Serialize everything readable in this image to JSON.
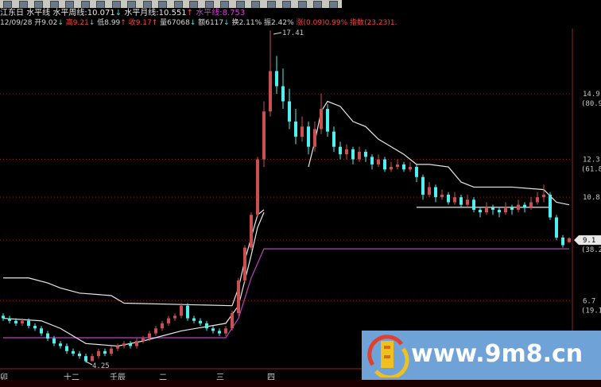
{
  "window": {
    "toolbar_icons": [
      "save-icon",
      "open-icon",
      "print-icon",
      "shield-icon",
      "pen-icon",
      "up-arrow-icon",
      "down-arrow-icon",
      "help-icon",
      "layout-icon",
      "layout-icon",
      "layout-icon",
      "layout-icon",
      "layout-icon",
      "layout-icon",
      "cursor-icon",
      "line-icon",
      "bars-icon",
      "chart-icon",
      "period-icon",
      "formula-icon",
      "square-icon",
      "circle-icon"
    ]
  },
  "header": {
    "indicator_name": "江东日",
    "line0_label": "水平线",
    "weekly_label": "水平周线:10.071",
    "weekly_arrow": "↓",
    "monthly_label": "水平月线:10.551",
    "monthly_arrow": "↑",
    "level_label": "水平线:8.753"
  },
  "quote": {
    "date": "12/09/28",
    "open": "开9.02",
    "open_arrow": "↓",
    "high": "高9.21",
    "high_arrow": "↓",
    "low": "低8.99",
    "low_arrow": "↑",
    "close": "收9.17",
    "close_arrow": "↑",
    "volume": "量67068",
    "volume_arrow": "↓",
    "amount": "额6117",
    "amount_arrow": "↓",
    "turnover": "换2.11%",
    "amplitude": "振2.42%",
    "change_label": "涨",
    "change": "(0.09)0.99%",
    "index_label": "指数",
    "index": "(23.23)1."
  },
  "axis": {
    "right_labels": [
      {
        "price": 14.9,
        "text": "14.9",
        "pct": "(80.9%)"
      },
      {
        "price": 12.3,
        "text": "12.3",
        "pct": "(61.8%)"
      },
      {
        "price": 10.8,
        "text": "10.8",
        "pct": ""
      },
      {
        "price": 9.1,
        "text": "9.1",
        "pct": "(38.2%)",
        "highlight": true
      },
      {
        "price": 6.7,
        "text": "6.7",
        "pct": "(19.1%)"
      }
    ],
    "bottom_labels": [
      "卯",
      "十二",
      "壬辰",
      "二",
      "三",
      "四"
    ]
  },
  "annotations": {
    "high": "17.41",
    "low": "4.25"
  },
  "watermark": {
    "text": "www.9m8.cn",
    "logo_colors": [
      "#e04030",
      "#f0c020"
    ]
  },
  "colors": {
    "up": "#c85050",
    "down": "#50f0f0",
    "grid": "#802020",
    "level_line": "#c040c0",
    "ma_line": "#e8e8e8",
    "background": "#000000"
  },
  "chart_data": {
    "type": "candlestick",
    "ylim": [
      3.9,
      18.2
    ],
    "ohlc": [
      [
        6.1,
        6.2,
        5.9,
        6.0
      ],
      [
        6.0,
        6.1,
        5.8,
        5.9
      ],
      [
        5.9,
        6.0,
        5.7,
        5.8
      ],
      [
        5.8,
        6.0,
        5.7,
        5.9
      ],
      [
        5.9,
        6.0,
        5.6,
        5.7
      ],
      [
        5.7,
        5.8,
        5.5,
        5.6
      ],
      [
        5.6,
        5.7,
        5.3,
        5.4
      ],
      [
        5.4,
        5.5,
        5.1,
        5.2
      ],
      [
        5.2,
        5.3,
        4.9,
        5.0
      ],
      [
        5.0,
        5.1,
        4.8,
        4.9
      ],
      [
        4.9,
        5.0,
        4.6,
        4.7
      ],
      [
        4.7,
        4.8,
        4.5,
        4.6
      ],
      [
        4.6,
        4.7,
        4.4,
        4.5
      ],
      [
        4.5,
        4.6,
        4.25,
        4.3
      ],
      [
        4.3,
        4.6,
        4.3,
        4.5
      ],
      [
        4.5,
        4.8,
        4.4,
        4.7
      ],
      [
        4.7,
        4.8,
        4.5,
        4.6
      ],
      [
        4.6,
        4.9,
        4.5,
        4.8
      ],
      [
        4.8,
        5.0,
        4.7,
        4.9
      ],
      [
        4.9,
        5.1,
        4.8,
        5.0
      ],
      [
        5.0,
        5.1,
        4.8,
        4.9
      ],
      [
        4.9,
        5.2,
        4.8,
        5.1
      ],
      [
        5.1,
        5.3,
        5.0,
        5.2
      ],
      [
        5.2,
        5.5,
        5.1,
        5.4
      ],
      [
        5.4,
        5.7,
        5.3,
        5.6
      ],
      [
        5.6,
        5.9,
        5.5,
        5.8
      ],
      [
        5.8,
        6.1,
        5.7,
        6.0
      ],
      [
        6.0,
        6.2,
        5.9,
        6.1
      ],
      [
        6.1,
        6.6,
        6.0,
        6.5
      ],
      [
        6.5,
        6.6,
        5.9,
        6.0
      ],
      [
        6.0,
        6.1,
        5.8,
        5.9
      ],
      [
        5.9,
        6.0,
        5.7,
        5.8
      ],
      [
        5.8,
        5.9,
        5.5,
        5.6
      ],
      [
        5.6,
        5.7,
        5.4,
        5.5
      ],
      [
        5.5,
        5.6,
        5.3,
        5.4
      ],
      [
        5.4,
        5.7,
        5.3,
        5.6
      ],
      [
        5.6,
        6.3,
        5.5,
        6.2
      ],
      [
        6.2,
        7.6,
        6.1,
        7.5
      ],
      [
        7.5,
        8.9,
        7.4,
        8.8
      ],
      [
        8.8,
        10.2,
        8.7,
        10.1
      ],
      [
        10.1,
        12.4,
        10.0,
        12.3
      ],
      [
        12.3,
        14.6,
        12.0,
        14.2
      ],
      [
        14.2,
        17.41,
        14.0,
        15.8
      ],
      [
        15.8,
        16.4,
        14.9,
        15.2
      ],
      [
        15.2,
        15.9,
        14.3,
        14.6
      ],
      [
        14.6,
        15.1,
        13.5,
        13.8
      ],
      [
        13.8,
        14.3,
        12.9,
        13.2
      ],
      [
        13.2,
        14.0,
        13.0,
        13.6
      ],
      [
        13.6,
        13.8,
        12.5,
        12.8
      ],
      [
        12.8,
        13.8,
        12.6,
        13.5
      ],
      [
        13.5,
        14.9,
        13.3,
        14.3
      ],
      [
        14.3,
        14.5,
        13.2,
        13.4
      ],
      [
        13.4,
        13.6,
        12.6,
        12.8
      ],
      [
        12.8,
        13.0,
        12.3,
        12.5
      ],
      [
        12.5,
        12.9,
        12.3,
        12.7
      ],
      [
        12.7,
        12.8,
        12.1,
        12.3
      ],
      [
        12.3,
        12.8,
        12.2,
        12.6
      ],
      [
        12.6,
        12.7,
        12.2,
        12.4
      ],
      [
        12.4,
        12.5,
        11.9,
        12.1
      ],
      [
        12.1,
        12.5,
        12.0,
        12.3
      ],
      [
        12.3,
        12.4,
        11.8,
        11.9
      ],
      [
        11.9,
        12.2,
        11.8,
        12.0
      ],
      [
        12.0,
        12.3,
        11.9,
        12.1
      ],
      [
        12.1,
        12.2,
        11.8,
        11.9
      ],
      [
        11.9,
        12.2,
        11.8,
        12.0
      ],
      [
        12.0,
        12.1,
        11.4,
        11.6
      ],
      [
        11.6,
        11.7,
        10.7,
        10.9
      ],
      [
        10.9,
        11.4,
        10.8,
        11.2
      ],
      [
        11.2,
        11.3,
        10.6,
        10.8
      ],
      [
        10.8,
        11.1,
        10.7,
        10.9
      ],
      [
        10.9,
        11.0,
        10.5,
        10.6
      ],
      [
        10.6,
        11.0,
        10.5,
        10.8
      ],
      [
        10.8,
        10.9,
        10.4,
        10.5
      ],
      [
        10.5,
        10.9,
        10.4,
        10.7
      ],
      [
        10.7,
        10.8,
        10.2,
        10.3
      ],
      [
        10.3,
        10.4,
        10.0,
        10.2
      ],
      [
        10.2,
        10.6,
        10.1,
        10.4
      ],
      [
        10.4,
        10.5,
        10.1,
        10.3
      ],
      [
        10.3,
        10.4,
        10.0,
        10.2
      ],
      [
        10.2,
        10.6,
        10.1,
        10.4
      ],
      [
        10.4,
        10.5,
        10.1,
        10.3
      ],
      [
        10.3,
        10.7,
        10.2,
        10.5
      ],
      [
        10.5,
        10.6,
        10.2,
        10.4
      ],
      [
        10.4,
        10.8,
        10.3,
        10.6
      ],
      [
        10.6,
        11.0,
        10.5,
        10.8
      ],
      [
        10.8,
        11.3,
        10.6,
        10.9
      ],
      [
        10.9,
        11.0,
        9.9,
        10.0
      ],
      [
        10.0,
        10.1,
        9.1,
        9.2
      ],
      [
        9.2,
        9.3,
        8.8,
        8.9
      ],
      [
        9.02,
        9.21,
        8.99,
        9.17
      ]
    ],
    "lines": [
      {
        "name": "水平线",
        "color": "#c040c0",
        "points": [
          [
            0,
            5.23
          ],
          [
            35,
            5.23
          ],
          [
            37,
            6.0
          ],
          [
            39,
            7.6
          ],
          [
            41,
            8.753
          ],
          [
            89,
            8.753
          ]
        ]
      },
      {
        "color": "#e8e8e8",
        "points": [
          [
            0,
            7.6
          ],
          [
            4,
            7.6
          ],
          [
            7,
            7.4
          ],
          [
            9,
            7.2
          ],
          [
            12,
            7.0
          ],
          [
            17,
            6.9
          ],
          [
            19,
            6.6
          ],
          [
            36,
            6.5
          ],
          [
            37,
            7.2
          ],
          [
            38,
            8.3
          ],
          [
            39,
            9.2
          ],
          [
            40,
            10.1
          ],
          [
            41,
            10.3
          ]
        ]
      },
      {
        "color": "#e8e8e8",
        "points": [
          [
            0,
            6.0
          ],
          [
            6,
            5.9
          ],
          [
            9,
            5.6
          ],
          [
            13,
            5.0
          ],
          [
            18,
            4.9
          ],
          [
            22,
            5.1
          ],
          [
            25,
            5.3
          ],
          [
            28,
            5.5
          ],
          [
            35,
            5.8
          ],
          [
            37,
            6.5
          ],
          [
            38,
            7.5
          ],
          [
            39,
            8.5
          ],
          [
            40,
            9.6
          ],
          [
            41,
            10.2
          ]
        ]
      },
      {
        "color": "#e8e8e8",
        "points": [
          [
            48,
            12.0
          ],
          [
            49,
            13.0
          ],
          [
            50,
            14.2
          ],
          [
            51,
            14.6
          ],
          [
            53,
            14.4
          ],
          [
            55,
            13.8
          ],
          [
            57,
            13.6
          ],
          [
            59,
            13.1
          ],
          [
            61,
            12.8
          ],
          [
            63,
            12.5
          ],
          [
            65,
            12.1
          ],
          [
            67,
            12.1
          ],
          [
            70,
            12.0
          ],
          [
            72,
            11.4
          ],
          [
            74,
            11.2
          ],
          [
            80,
            11.2
          ],
          [
            85,
            11.1
          ],
          [
            87,
            10.6
          ],
          [
            89,
            10.5
          ]
        ]
      },
      {
        "color": "#e8e8e8",
        "points": [
          [
            65,
            10.4
          ],
          [
            86,
            10.4
          ]
        ]
      }
    ]
  }
}
